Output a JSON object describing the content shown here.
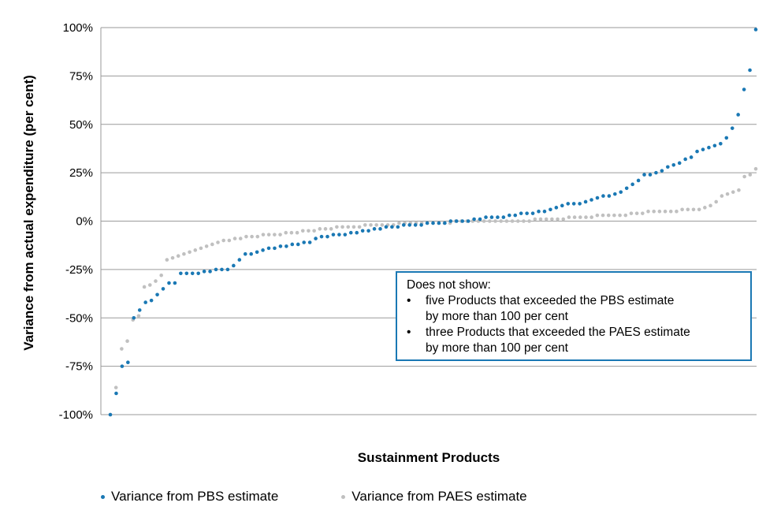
{
  "chart_data": {
    "type": "scatter",
    "ylabel": "Variance from actual expenditure (per cent)",
    "xlabel": "Sustainment Products",
    "yticks": [
      "100%",
      "75%",
      "50%",
      "25%",
      "0%",
      "-25%",
      "-50%",
      "-75%",
      "-100%"
    ],
    "ylim": [
      -100,
      100
    ],
    "grid": "horizontal",
    "legend_position": "bottom",
    "series": [
      {
        "name": "Variance from PBS estimate",
        "color": "#1a78b4",
        "values": [
          -100,
          -89,
          -75,
          -73,
          -50,
          -46,
          -42,
          -41,
          -38,
          -35,
          -32,
          -32,
          -27,
          -27,
          -27,
          -27,
          -26,
          -26,
          -25,
          -25,
          -25,
          -23,
          -20,
          -17,
          -17,
          -16,
          -15,
          -14,
          -14,
          -13,
          -13,
          -12,
          -12,
          -11,
          -11,
          -9,
          -8,
          -8,
          -7,
          -7,
          -7,
          -6,
          -6,
          -5,
          -5,
          -4,
          -4,
          -3,
          -3,
          -3,
          -2,
          -2,
          -2,
          -2,
          -1,
          -1,
          -1,
          -1,
          0,
          0,
          0,
          0,
          1,
          1,
          2,
          2,
          2,
          2,
          3,
          3,
          4,
          4,
          4,
          5,
          5,
          6,
          7,
          8,
          9,
          9,
          9,
          10,
          11,
          12,
          13,
          13,
          14,
          15,
          17,
          19,
          21,
          24,
          24,
          25,
          26,
          28,
          29,
          30,
          32,
          33,
          36,
          37,
          38,
          39,
          40,
          43,
          48,
          55,
          68,
          78,
          99
        ]
      },
      {
        "name": "Variance from PAES estimate",
        "color": "#c0c0c0",
        "values": [
          -100,
          -86,
          -66,
          -62,
          -51,
          -49,
          -34,
          -33,
          -31,
          -28,
          -20,
          -19,
          -18,
          -17,
          -16,
          -15,
          -14,
          -13,
          -12,
          -11,
          -10,
          -10,
          -9,
          -9,
          -8,
          -8,
          -8,
          -7,
          -7,
          -7,
          -7,
          -6,
          -6,
          -6,
          -5,
          -5,
          -5,
          -4,
          -4,
          -4,
          -3,
          -3,
          -3,
          -3,
          -3,
          -2,
          -2,
          -2,
          -2,
          -2,
          -2,
          -1,
          -1,
          -1,
          -1,
          -1,
          -1,
          -1,
          -1,
          -1,
          -1,
          0,
          0,
          0,
          0,
          0,
          0,
          0,
          0,
          0,
          0,
          0,
          0,
          0,
          0,
          1,
          1,
          1,
          1,
          1,
          1,
          2,
          2,
          2,
          2,
          2,
          3,
          3,
          3,
          3,
          3,
          3,
          4,
          4,
          4,
          5,
          5,
          5,
          5,
          5,
          5,
          6,
          6,
          6,
          6,
          7,
          8,
          10,
          13,
          14,
          15,
          16,
          23,
          24,
          27
        ]
      }
    ],
    "annotation": {
      "heading": "Does not show:",
      "bullets": [
        {
          "marker": "•",
          "text": "five Products that exceeded the PBS estimate",
          "continuation": "by more than 100 per cent"
        },
        {
          "marker": "•",
          "text": "three Products that exceeded the PAES estimate",
          "continuation": "by more than 100 per cent"
        }
      ]
    }
  }
}
